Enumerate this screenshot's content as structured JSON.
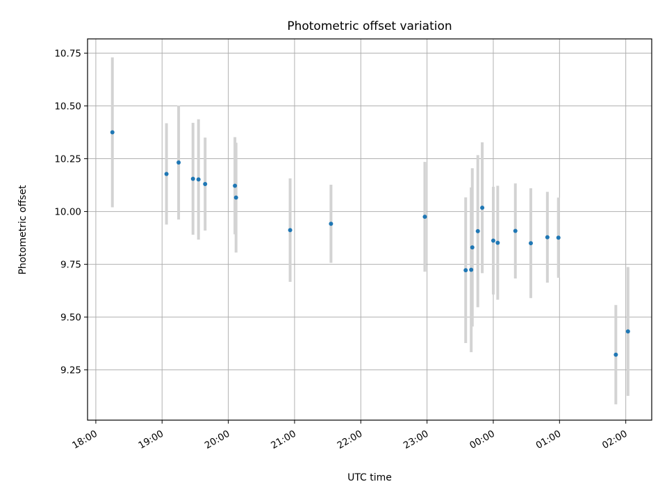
{
  "chart_data": {
    "type": "scatter",
    "title": "Photometric offset variation",
    "xlabel": "UTC time",
    "ylabel": "Photometric offset",
    "x_axis_type": "time",
    "x_ticks": [
      "18:00",
      "19:00",
      "20:00",
      "21:00",
      "22:00",
      "23:00",
      "00:00",
      "01:00",
      "02:00"
    ],
    "y_ticks": [
      "9.25",
      "9.50",
      "9.75",
      "10.00",
      "10.25",
      "10.50",
      "10.75"
    ],
    "grid": true,
    "colors": {
      "point": "#1f77b4",
      "errorbar": "#d3d3d3",
      "grid": "#b0b0b0"
    },
    "series": [
      {
        "points": [
          {
            "x": "18:15",
            "y": 10.375,
            "err": 0.355
          },
          {
            "x": "19:04",
            "y": 10.178,
            "err": 0.24
          },
          {
            "x": "19:15",
            "y": 10.232,
            "err": 0.27
          },
          {
            "x": "19:28",
            "y": 10.155,
            "err": 0.265
          },
          {
            "x": "19:33",
            "y": 10.152,
            "err": 0.285
          },
          {
            "x": "19:39",
            "y": 10.13,
            "err": 0.22
          },
          {
            "x": "20:06",
            "y": 10.122,
            "err": 0.23
          },
          {
            "x": "20:07",
            "y": 10.066,
            "err": 0.26
          },
          {
            "x": "20:56",
            "y": 9.912,
            "err": 0.245
          },
          {
            "x": "21:33",
            "y": 9.942,
            "err": 0.185
          },
          {
            "x": "22:58",
            "y": 9.975,
            "err": 0.26
          },
          {
            "x": "23:35",
            "y": 9.722,
            "err": 0.345
          },
          {
            "x": "23:40",
            "y": 9.724,
            "err": 0.39
          },
          {
            "x": "23:41",
            "y": 9.83,
            "err": 0.375
          },
          {
            "x": "23:46",
            "y": 9.907,
            "err": 0.36
          },
          {
            "x": "23:50",
            "y": 10.018,
            "err": 0.31
          },
          {
            "x": "00:00",
            "y": 9.862,
            "err": 0.255
          },
          {
            "x": "00:04",
            "y": 9.852,
            "err": 0.27
          },
          {
            "x": "00:20",
            "y": 9.908,
            "err": 0.225
          },
          {
            "x": "00:34",
            "y": 9.85,
            "err": 0.26
          },
          {
            "x": "00:49",
            "y": 9.878,
            "err": 0.215
          },
          {
            "x": "00:59",
            "y": 9.876,
            "err": 0.19
          },
          {
            "x": "01:51",
            "y": 9.322,
            "err": 0.235
          },
          {
            "x": "02:02",
            "y": 9.432,
            "err": 0.305
          }
        ]
      }
    ]
  }
}
